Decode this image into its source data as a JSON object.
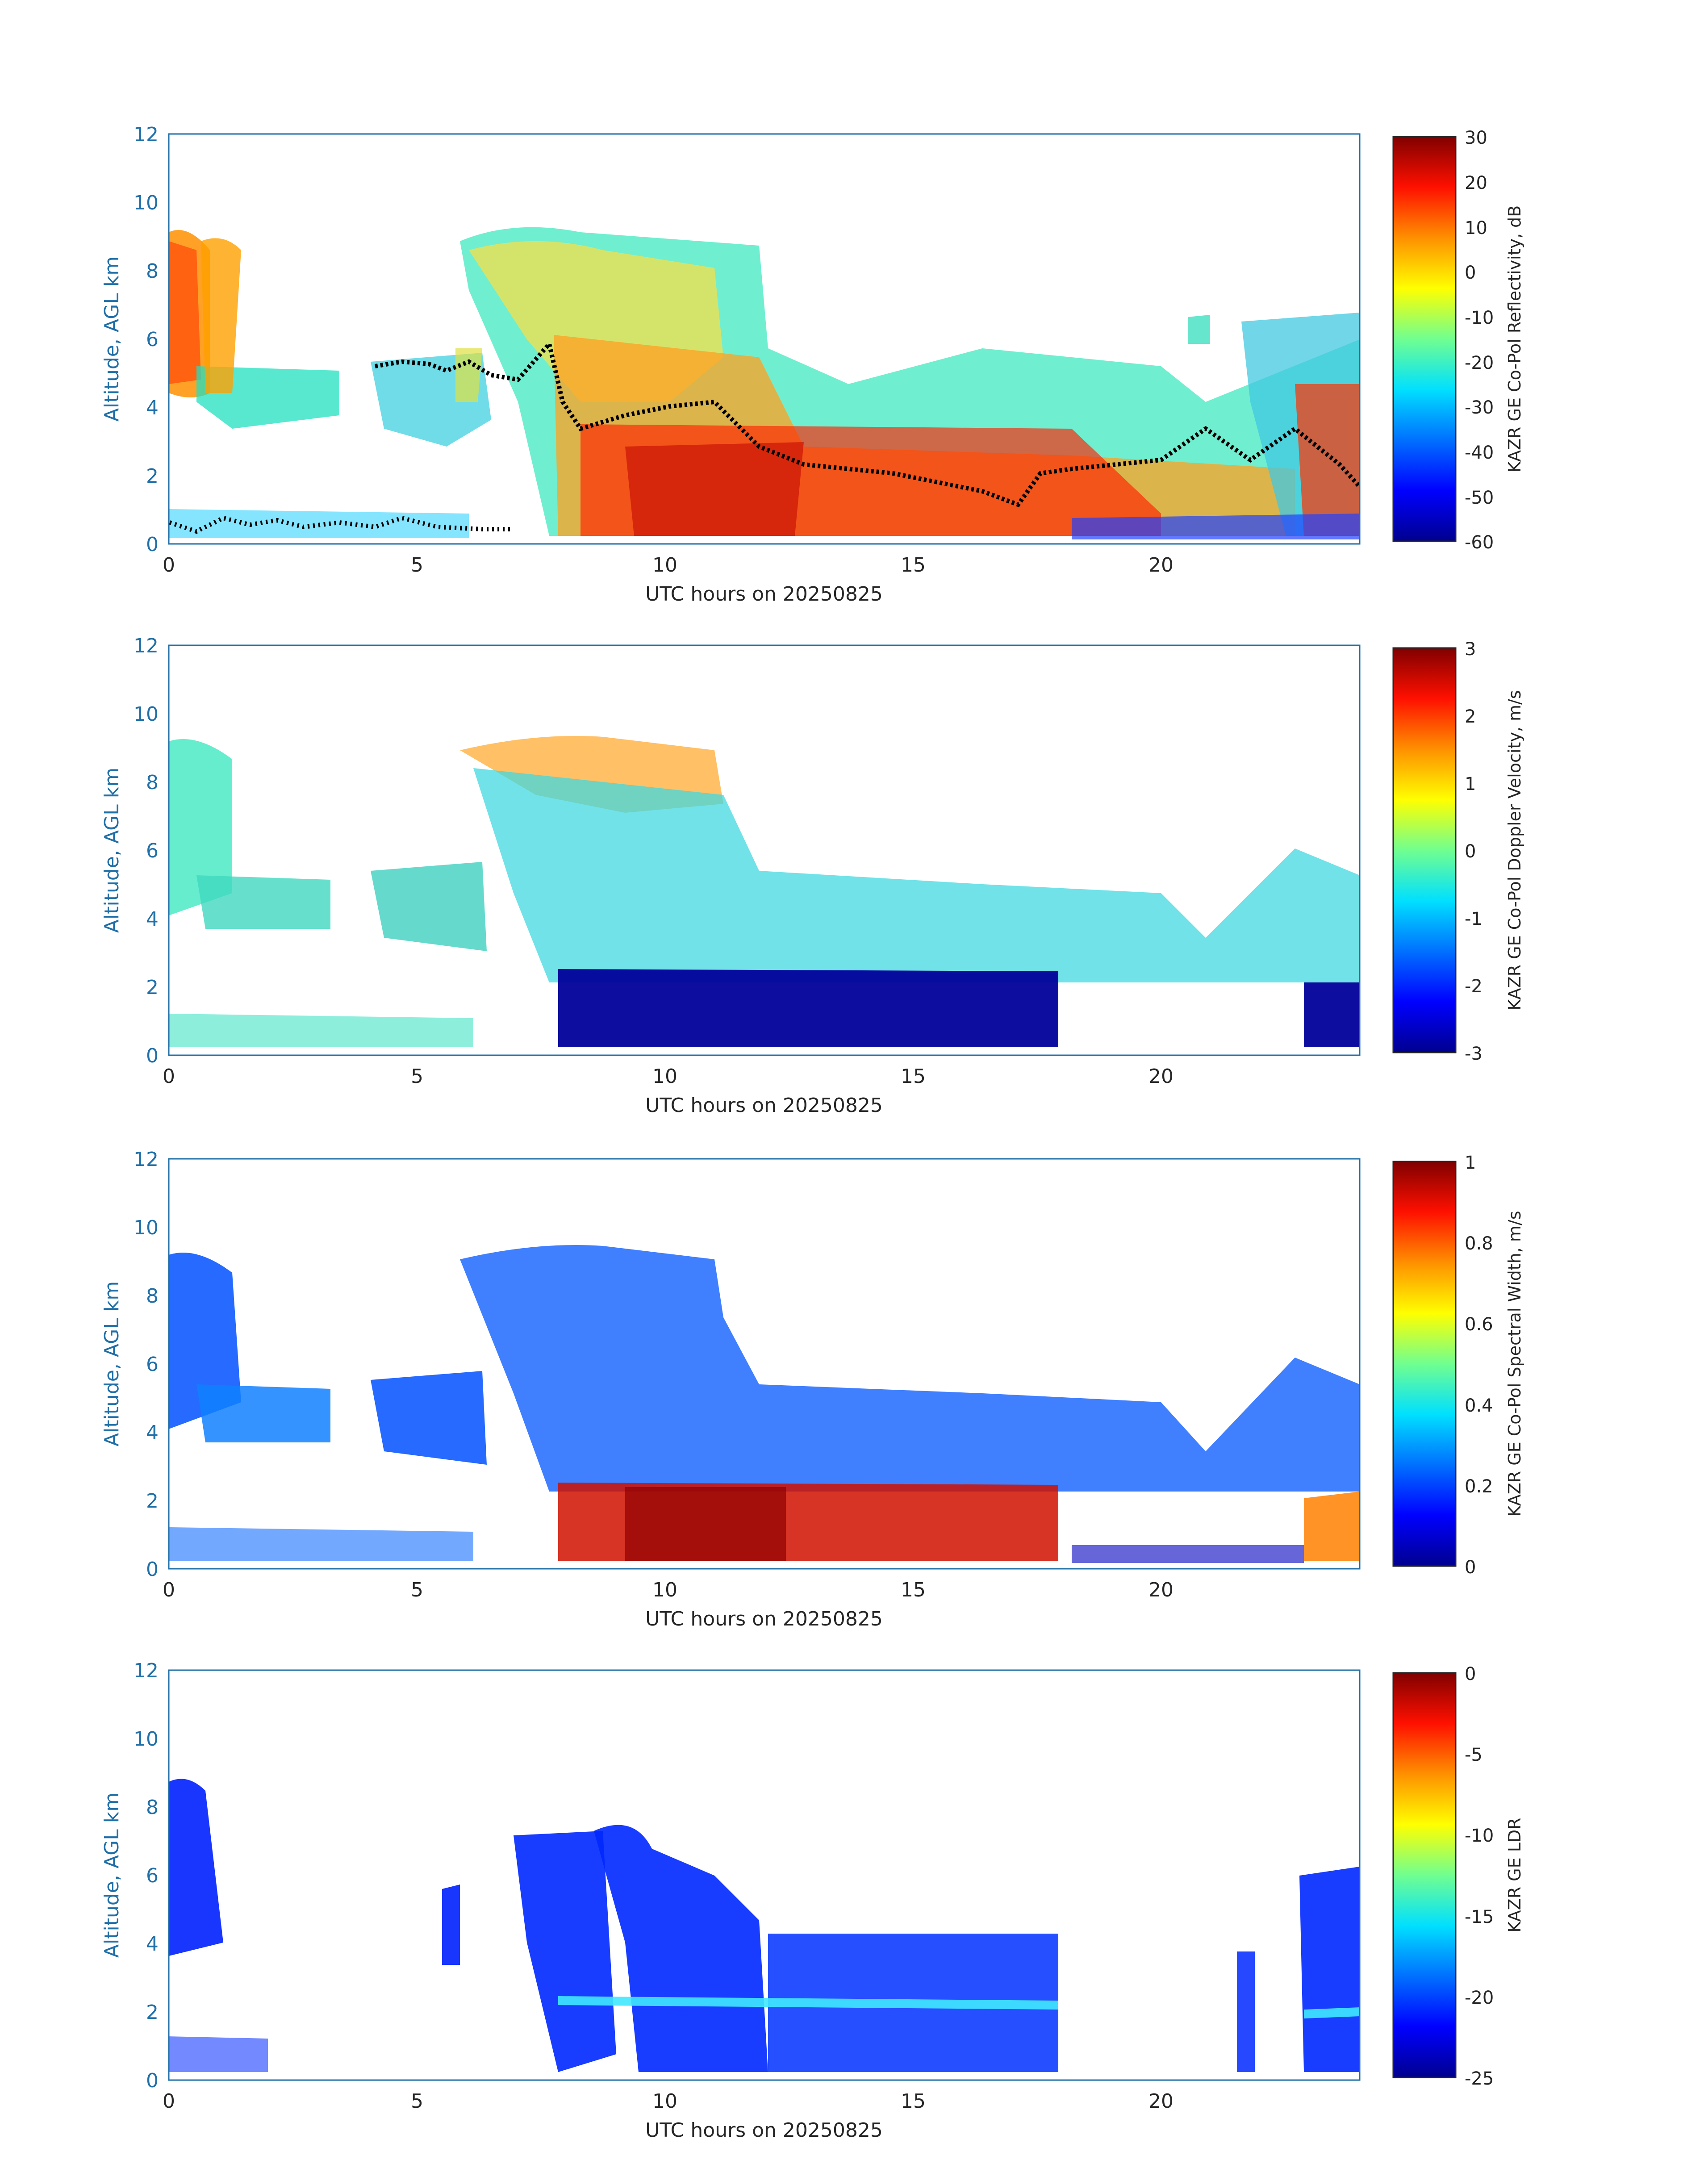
{
  "chart_data": [
    {
      "type": "heatmap",
      "xlabel": "UTC hours on 20250825",
      "ylabel": "Altitude, AGL km",
      "xlim": [
        0,
        24
      ],
      "ylim": [
        0,
        12
      ],
      "xticks": [
        "0",
        "5",
        "10",
        "15",
        "20"
      ],
      "yticks": [
        "0",
        "2",
        "4",
        "6",
        "8",
        "10",
        "12"
      ],
      "colorbar": {
        "label": "KAZR GE Co-Pol Reflectivity, dB",
        "range": [
          -60,
          30
        ],
        "ticks": [
          "30",
          "20",
          "10",
          "0",
          "-10",
          "-20",
          "-30",
          "-40",
          "-50",
          "-60"
        ]
      },
      "overlay_series": "black dots (cloud-base / layer height)"
    },
    {
      "type": "heatmap",
      "xlabel": "UTC hours on 20250825",
      "ylabel": "Altitude, AGL km",
      "xlim": [
        0,
        24
      ],
      "ylim": [
        0,
        12
      ],
      "xticks": [
        "0",
        "5",
        "10",
        "15",
        "20"
      ],
      "yticks": [
        "0",
        "2",
        "4",
        "6",
        "8",
        "10",
        "12"
      ],
      "colorbar": {
        "label": "KAZR GE Co-Pol Doppler Velocity, m/s",
        "range": [
          -3,
          3
        ],
        "ticks": [
          "3",
          "2",
          "1",
          "0",
          "-1",
          "-2",
          "-3"
        ]
      }
    },
    {
      "type": "heatmap",
      "xlabel": "UTC hours on 20250825",
      "ylabel": "Altitude, AGL km",
      "xlim": [
        0,
        24
      ],
      "ylim": [
        0,
        12
      ],
      "xticks": [
        "0",
        "5",
        "10",
        "15",
        "20"
      ],
      "yticks": [
        "0",
        "2",
        "4",
        "6",
        "8",
        "10",
        "12"
      ],
      "colorbar": {
        "label": "KAZR GE Co-Pol Spectral Width, m/s",
        "range": [
          0,
          1
        ],
        "ticks": [
          "1",
          "0.8",
          "0.6",
          "0.4",
          "0.2",
          "0"
        ]
      }
    },
    {
      "type": "heatmap",
      "xlabel": "UTC hours on 20250825",
      "ylabel": "Altitude, AGL km",
      "xlim": [
        0,
        24
      ],
      "ylim": [
        0,
        12
      ],
      "xticks": [
        "0",
        "5",
        "10",
        "15",
        "20"
      ],
      "yticks": [
        "0",
        "2",
        "4",
        "6",
        "8",
        "10",
        "12"
      ],
      "colorbar": {
        "label": "KAZR GE LDR",
        "range": [
          -25,
          0
        ],
        "ticks": [
          "0",
          "-5",
          "-10",
          "-15",
          "-20",
          "-25"
        ]
      }
    }
  ],
  "colors": {
    "axis_blue": "#1f6fa8",
    "jet_colormap": [
      "#00008f",
      "#0000ff",
      "#0080ff",
      "#00ffff",
      "#80ff80",
      "#ffff00",
      "#ff8000",
      "#ff0000",
      "#800000"
    ]
  }
}
